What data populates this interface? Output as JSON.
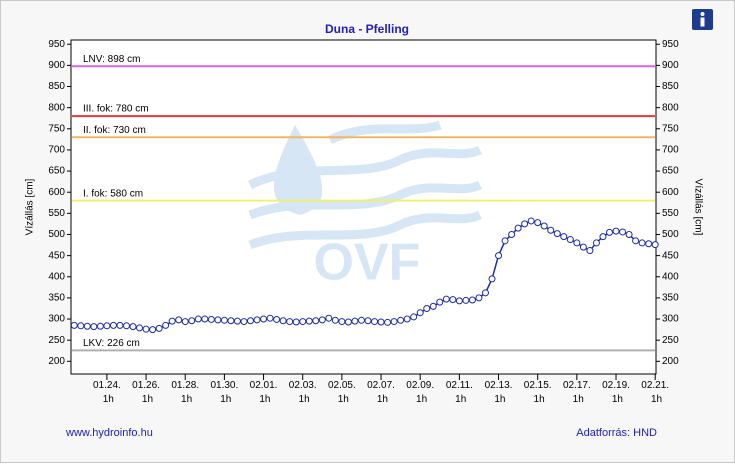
{
  "chart_data": {
    "type": "line",
    "title": "Duna - Pfelling",
    "ylabel": "Vízállás [cm]",
    "y2label": "Vízállás [cm]",
    "watermark": "OVF",
    "source_left": "www.hydroinfo.hu",
    "source_right": "Adatforrás: HND",
    "ylim": [
      170,
      960
    ],
    "yticks": [
      200,
      250,
      300,
      350,
      400,
      450,
      500,
      550,
      600,
      650,
      700,
      750,
      800,
      850,
      900,
      950
    ],
    "y2lim": [
      170,
      960
    ],
    "y2ticks": [
      200,
      250,
      300,
      350,
      400,
      450,
      500,
      550,
      600,
      650,
      700,
      750,
      800,
      850,
      900,
      950
    ],
    "xlim": [
      "01.22. 5h",
      "02.21. 2h"
    ],
    "xticks": [
      "01.24. 1h",
      "01.26. 1h",
      "01.28. 1h",
      "01.30. 1h",
      "02.01. 1h",
      "02.03. 1h",
      "02.05. 1h",
      "02.07. 1h",
      "02.09. 1h",
      "02.11. 1h",
      "02.13. 1h",
      "02.15. 1h",
      "02.17. 1h",
      "02.19. 1h",
      "02.21. 1h"
    ],
    "reference_lines": [
      {
        "label": "LNV: 898 cm",
        "value": 898,
        "color": "#e060e0"
      },
      {
        "label": "III. fok: 780 cm",
        "value": 780,
        "color": "#e03a3a"
      },
      {
        "label": "II. fok: 730 cm",
        "value": 730,
        "color": "#f0b860"
      },
      {
        "label": "I. fok: 580 cm",
        "value": 580,
        "color": "#f0f070"
      },
      {
        "label": "LKV: 226 cm",
        "value": 226,
        "color": "#b0b0b0"
      }
    ],
    "x": [
      "01.22. 9h",
      "01.22. 17h",
      "01.23. 1h",
      "01.23. 9h",
      "01.23. 17h",
      "01.24. 1h",
      "01.24. 9h",
      "01.24. 17h",
      "01.25. 1h",
      "01.25. 9h",
      "01.25. 17h",
      "01.26. 1h",
      "01.26. 9h",
      "01.26. 17h",
      "01.27. 1h",
      "01.27. 9h",
      "01.27. 17h",
      "01.28. 1h",
      "01.28. 9h",
      "01.28. 17h",
      "01.29. 1h",
      "01.29. 9h",
      "01.29. 17h",
      "01.30. 1h",
      "01.30. 9h",
      "01.30. 17h",
      "01.31. 1h",
      "01.31. 9h",
      "01.31. 17h",
      "02.01. 1h",
      "02.01. 9h",
      "02.01. 17h",
      "02.02. 1h",
      "02.02. 9h",
      "02.02. 17h",
      "02.03. 1h",
      "02.03. 9h",
      "02.03. 17h",
      "02.04. 1h",
      "02.04. 9h",
      "02.04. 17h",
      "02.05. 1h",
      "02.05. 9h",
      "02.05. 17h",
      "02.06. 1h",
      "02.06. 9h",
      "02.06. 17h",
      "02.07. 1h",
      "02.07. 9h",
      "02.07. 17h",
      "02.08. 1h",
      "02.08. 9h",
      "02.08. 17h",
      "02.09. 1h",
      "02.09. 9h",
      "02.09. 17h",
      "02.10. 1h",
      "02.10. 9h",
      "02.10. 17h",
      "02.11. 1h",
      "02.11. 9h",
      "02.11. 17h",
      "02.12. 1h",
      "02.12. 9h",
      "02.12. 17h",
      "02.13. 1h",
      "02.13. 9h",
      "02.13. 17h",
      "02.14. 1h",
      "02.14. 9h",
      "02.14. 17h",
      "02.15. 1h",
      "02.15. 9h",
      "02.15. 17h",
      "02.16. 1h",
      "02.16. 9h",
      "02.16. 17h",
      "02.17. 1h",
      "02.17. 9h",
      "02.17. 17h",
      "02.18. 1h",
      "02.18. 9h",
      "02.18. 17h",
      "02.19. 1h",
      "02.19. 9h",
      "02.19. 17h",
      "02.20. 1h",
      "02.20. 9h",
      "02.20. 17h",
      "02.21. 1h"
    ],
    "series": [
      {
        "name": "Vízállás",
        "color": "#1a2aa8",
        "values": [
          285,
          284,
          283,
          282,
          283,
          284,
          285,
          285,
          284,
          282,
          279,
          276,
          275,
          278,
          285,
          295,
          298,
          294,
          296,
          300,
          300,
          299,
          298,
          297,
          296,
          295,
          294,
          296,
          298,
          300,
          302,
          299,
          296,
          294,
          293,
          294,
          295,
          296,
          298,
          302,
          297,
          294,
          293,
          295,
          297,
          296,
          294,
          293,
          292,
          294,
          297,
          300,
          305,
          315,
          325,
          330,
          340,
          347,
          346,
          343,
          344,
          345,
          350,
          362,
          395,
          450,
          485,
          500,
          515,
          525,
          532,
          528,
          520,
          510,
          502,
          495,
          488,
          480,
          470,
          462,
          480,
          495,
          505,
          508,
          506,
          500,
          485,
          480,
          478,
          476
        ]
      }
    ]
  }
}
